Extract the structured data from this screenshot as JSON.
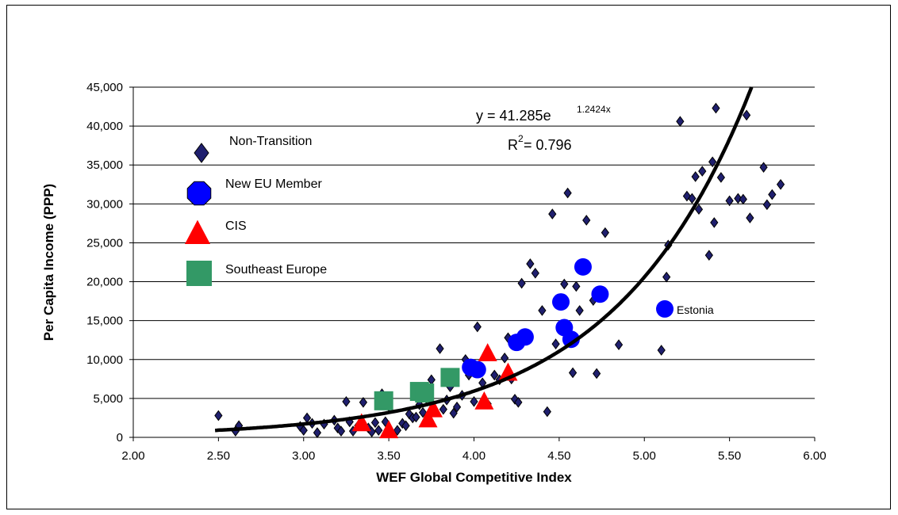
{
  "chart_data": {
    "type": "scatter",
    "title": "",
    "xlabel": "WEF Global Competitive Index",
    "ylabel": "Per Capita Income (PPP)",
    "xlim": [
      2.0,
      6.0
    ],
    "ylim": [
      0,
      45000
    ],
    "x_ticks": [
      "2.00",
      "2.50",
      "3.00",
      "3.50",
      "4.00",
      "4.50",
      "5.00",
      "5.50",
      "6.00"
    ],
    "y_ticks": [
      "0",
      "5,000",
      "10,000",
      "15,000",
      "20,000",
      "25,000",
      "30,000",
      "35,000",
      "40,000",
      "45,000"
    ],
    "grid": "horizontal",
    "legend_placement": "upper-left",
    "trendline": {
      "a": 41.285,
      "b": 1.2424,
      "equation_text": "y = 41.285e",
      "exponent_text": "1.2424x",
      "r2_prefix": "R",
      "r2_super": "2",
      "r2_value": " = 0.796"
    },
    "annotations": [
      {
        "text": "Estonia",
        "x": 5.12,
        "y": 16500
      }
    ],
    "series": [
      {
        "name": "Non-Transition",
        "marker": "diamond",
        "color": "#1f1f6e",
        "points": [
          [
            2.5,
            2800
          ],
          [
            2.6,
            800
          ],
          [
            2.62,
            1500
          ],
          [
            2.98,
            1400
          ],
          [
            3.0,
            900
          ],
          [
            3.02,
            2500
          ],
          [
            3.05,
            1800
          ],
          [
            3.08,
            600
          ],
          [
            3.12,
            1700
          ],
          [
            3.18,
            2200
          ],
          [
            3.2,
            1200
          ],
          [
            3.22,
            800
          ],
          [
            3.25,
            4600
          ],
          [
            3.27,
            2000
          ],
          [
            3.29,
            800
          ],
          [
            3.32,
            1500
          ],
          [
            3.35,
            4500
          ],
          [
            3.38,
            1200
          ],
          [
            3.4,
            700
          ],
          [
            3.42,
            1900
          ],
          [
            3.44,
            900
          ],
          [
            3.46,
            5600
          ],
          [
            3.48,
            2000
          ],
          [
            3.5,
            4000
          ],
          [
            3.55,
            900
          ],
          [
            3.58,
            1800
          ],
          [
            3.6,
            1500
          ],
          [
            3.62,
            3000
          ],
          [
            3.64,
            2500
          ],
          [
            3.66,
            2600
          ],
          [
            3.68,
            4200
          ],
          [
            3.7,
            3200
          ],
          [
            3.72,
            5000
          ],
          [
            3.75,
            7400
          ],
          [
            3.8,
            11400
          ],
          [
            3.82,
            3600
          ],
          [
            3.84,
            4800
          ],
          [
            3.86,
            6500
          ],
          [
            3.88,
            3100
          ],
          [
            3.9,
            3900
          ],
          [
            3.93,
            5400
          ],
          [
            3.95,
            10000
          ],
          [
            3.97,
            8000
          ],
          [
            4.0,
            4600
          ],
          [
            4.02,
            14200
          ],
          [
            4.05,
            7000
          ],
          [
            4.08,
            4300
          ],
          [
            4.12,
            8000
          ],
          [
            4.15,
            7400
          ],
          [
            4.18,
            10200
          ],
          [
            4.2,
            12800
          ],
          [
            4.22,
            7500
          ],
          [
            4.24,
            4900
          ],
          [
            4.26,
            4500
          ],
          [
            4.28,
            19800
          ],
          [
            4.33,
            22300
          ],
          [
            4.36,
            21100
          ],
          [
            4.4,
            16300
          ],
          [
            4.43,
            3300
          ],
          [
            4.46,
            28700
          ],
          [
            4.48,
            12000
          ],
          [
            4.53,
            19700
          ],
          [
            4.55,
            31400
          ],
          [
            4.58,
            8300
          ],
          [
            4.6,
            19400
          ],
          [
            4.62,
            16300
          ],
          [
            4.66,
            27900
          ],
          [
            4.7,
            17600
          ],
          [
            4.72,
            8200
          ],
          [
            4.77,
            26300
          ],
          [
            4.85,
            11900
          ],
          [
            5.1,
            11200
          ],
          [
            5.14,
            24700
          ],
          [
            5.13,
            20600
          ],
          [
            5.21,
            40600
          ],
          [
            5.25,
            31000
          ],
          [
            5.28,
            30700
          ],
          [
            5.3,
            33500
          ],
          [
            5.32,
            29300
          ],
          [
            5.34,
            34200
          ],
          [
            5.38,
            23400
          ],
          [
            5.4,
            35400
          ],
          [
            5.41,
            27600
          ],
          [
            5.42,
            42300
          ],
          [
            5.45,
            33400
          ],
          [
            5.5,
            30400
          ],
          [
            5.55,
            30700
          ],
          [
            5.58,
            30600
          ],
          [
            5.6,
            41400
          ],
          [
            5.62,
            28200
          ],
          [
            5.7,
            34700
          ],
          [
            5.72,
            29900
          ],
          [
            5.75,
            31200
          ],
          [
            5.8,
            32500
          ]
        ]
      },
      {
        "name": "New EU Member",
        "marker": "circle",
        "color": "#0000ff",
        "points": [
          [
            3.98,
            9000
          ],
          [
            4.02,
            8700
          ],
          [
            4.25,
            12200
          ],
          [
            4.3,
            12900
          ],
          [
            4.51,
            17400
          ],
          [
            4.53,
            14100
          ],
          [
            4.57,
            12600
          ],
          [
            4.64,
            21900
          ],
          [
            4.74,
            18400
          ],
          [
            5.12,
            16500
          ]
        ]
      },
      {
        "name": "CIS",
        "marker": "triangle",
        "color": "#ff0000",
        "points": [
          [
            3.34,
            1700
          ],
          [
            3.5,
            800
          ],
          [
            3.73,
            2200
          ],
          [
            3.76,
            3500
          ],
          [
            3.86,
            7500
          ],
          [
            4.06,
            4500
          ],
          [
            4.08,
            10700
          ],
          [
            4.2,
            8200
          ]
        ]
      },
      {
        "name": "Southeast Europe",
        "marker": "square",
        "color": "#339966",
        "points": [
          [
            3.47,
            4700
          ],
          [
            3.68,
            5900
          ],
          [
            3.71,
            5700
          ],
          [
            3.86,
            7700
          ]
        ]
      }
    ]
  }
}
